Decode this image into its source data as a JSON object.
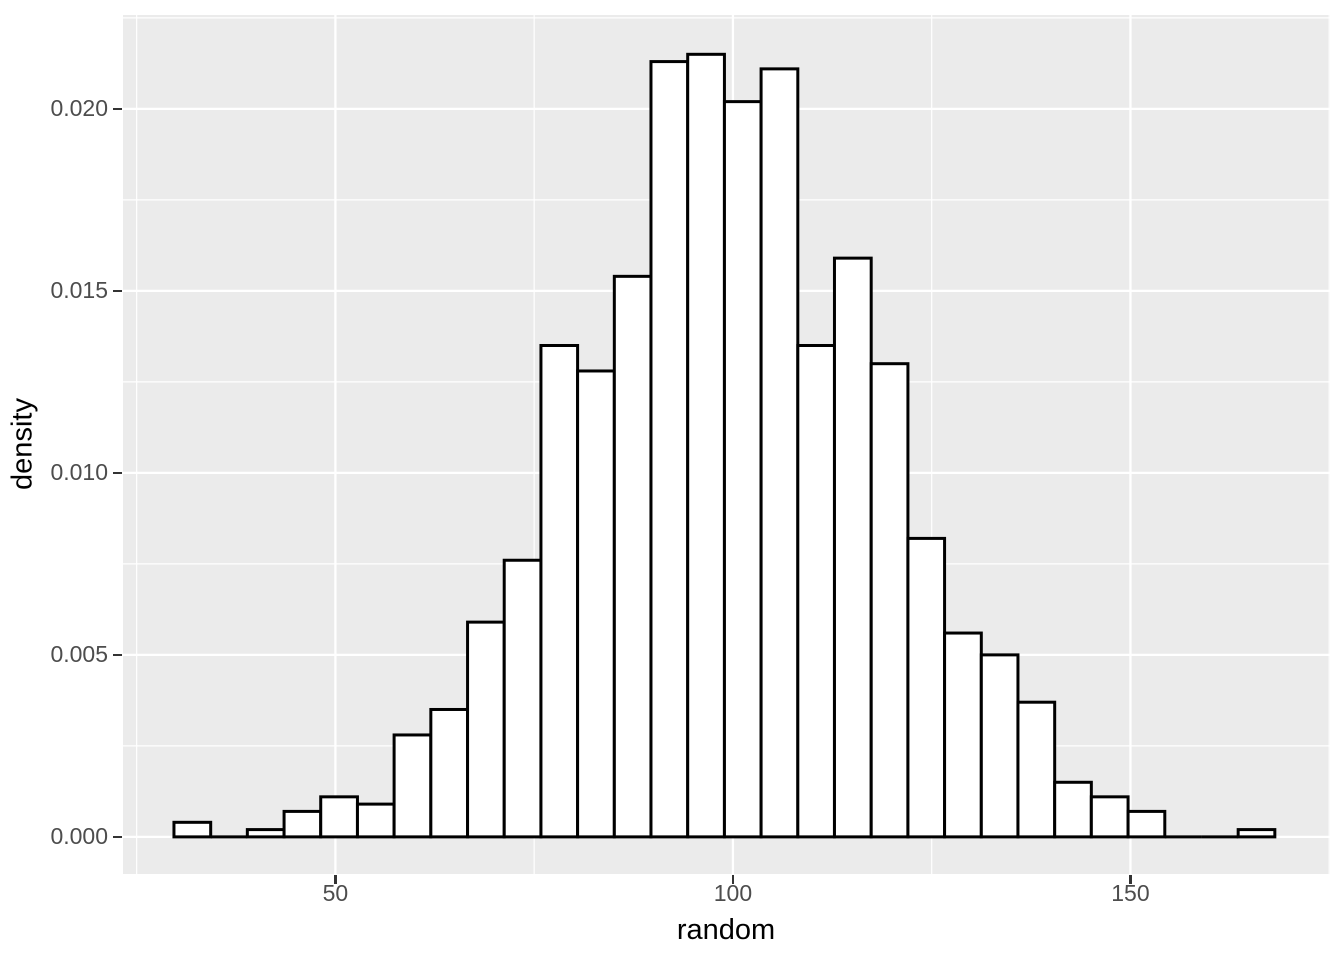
{
  "chart_data": {
    "type": "bar",
    "subtype": "histogram",
    "title": "",
    "xlabel": "random",
    "ylabel": "density",
    "grid": "on",
    "legend": "none",
    "bin_edges": [
      29.69,
      34.31,
      38.92,
      43.54,
      48.15,
      52.77,
      57.38,
      62.0,
      66.62,
      71.23,
      75.85,
      80.46,
      85.08,
      89.69,
      94.31,
      98.93,
      103.54,
      108.16,
      112.77,
      117.39,
      122.01,
      126.62,
      131.24,
      135.85,
      140.47,
      145.08,
      149.7,
      154.32,
      158.93,
      163.55,
      168.16
    ],
    "densities": [
      0.0004,
      0,
      0.0002,
      0.0007,
      0.0011,
      0.0009,
      0.0028,
      0.0035,
      0.0059,
      0.0076,
      0.0135,
      0.0128,
      0.0154,
      0.0213,
      0.0215,
      0.0202,
      0.0211,
      0.0135,
      0.0159,
      0.013,
      0.0082,
      0.0056,
      0.005,
      0.0037,
      0.0015,
      0.0011,
      0.0007,
      0,
      0,
      0.0002
    ],
    "x_ticks": {
      "values": [
        50,
        100,
        150
      ],
      "labels": [
        "50",
        "100",
        "150"
      ]
    },
    "y_ticks": {
      "values": [
        0,
        0.005,
        0.01,
        0.015,
        0.02
      ],
      "labels": [
        "0.000",
        "0.005",
        "0.010",
        "0.015",
        "0.020"
      ]
    },
    "x_minor_gridlines": [
      25,
      75,
      125,
      175
    ],
    "y_minor_gridlines": [
      0.0025,
      0.0075,
      0.0125,
      0.0175,
      0.0225
    ],
    "xlim": [
      23.28,
      175.1
    ],
    "ylim": [
      -0.00102,
      0.02258
    ],
    "colors": {
      "panel_bg": "#EBEBEB",
      "grid": "#FFFFFF",
      "bar_fill": "#FFFFFF",
      "bar_stroke": "#000000",
      "tick_label": "#4D4D4D",
      "tick_mark": "#333333",
      "axis_title": "#000000"
    }
  }
}
